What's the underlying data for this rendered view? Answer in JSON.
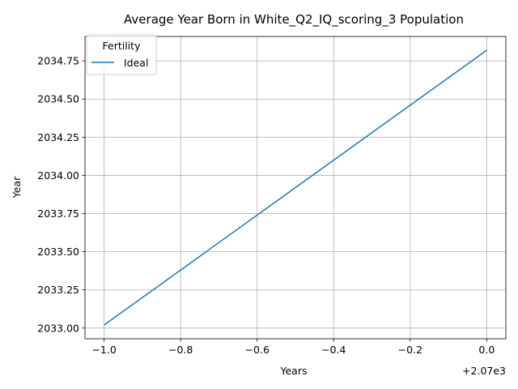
{
  "chart_data": {
    "type": "line",
    "title": "Average Year Born in White_Q2_IQ_scoring_3 Population",
    "xlabel": "Years",
    "ylabel": "Year",
    "x_offset_text": "+2.07e3",
    "xlim": [
      2068.95,
      2070.05
    ],
    "ylim": [
      2032.93,
      2034.91
    ],
    "x_ticks": [
      2069.0,
      2069.2,
      2069.4,
      2069.6,
      2069.8,
      2070.0
    ],
    "x_tick_labels": [
      "−1.0",
      "−0.8",
      "−0.6",
      "−0.4",
      "−0.2",
      "0.0"
    ],
    "y_ticks": [
      2033.0,
      2033.25,
      2033.5,
      2033.75,
      2034.0,
      2034.25,
      2034.5,
      2034.75
    ],
    "y_tick_labels": [
      "2033.00",
      "2033.25",
      "2033.50",
      "2033.75",
      "2034.00",
      "2034.25",
      "2034.50",
      "2034.75"
    ],
    "grid": true,
    "legend": {
      "title": "Fertility",
      "position": "top-left"
    },
    "series": [
      {
        "name": "Ideal",
        "color": "#1f77b4",
        "x": [
          2069.0,
          2070.0
        ],
        "y": [
          2033.02,
          2034.82
        ]
      }
    ]
  }
}
